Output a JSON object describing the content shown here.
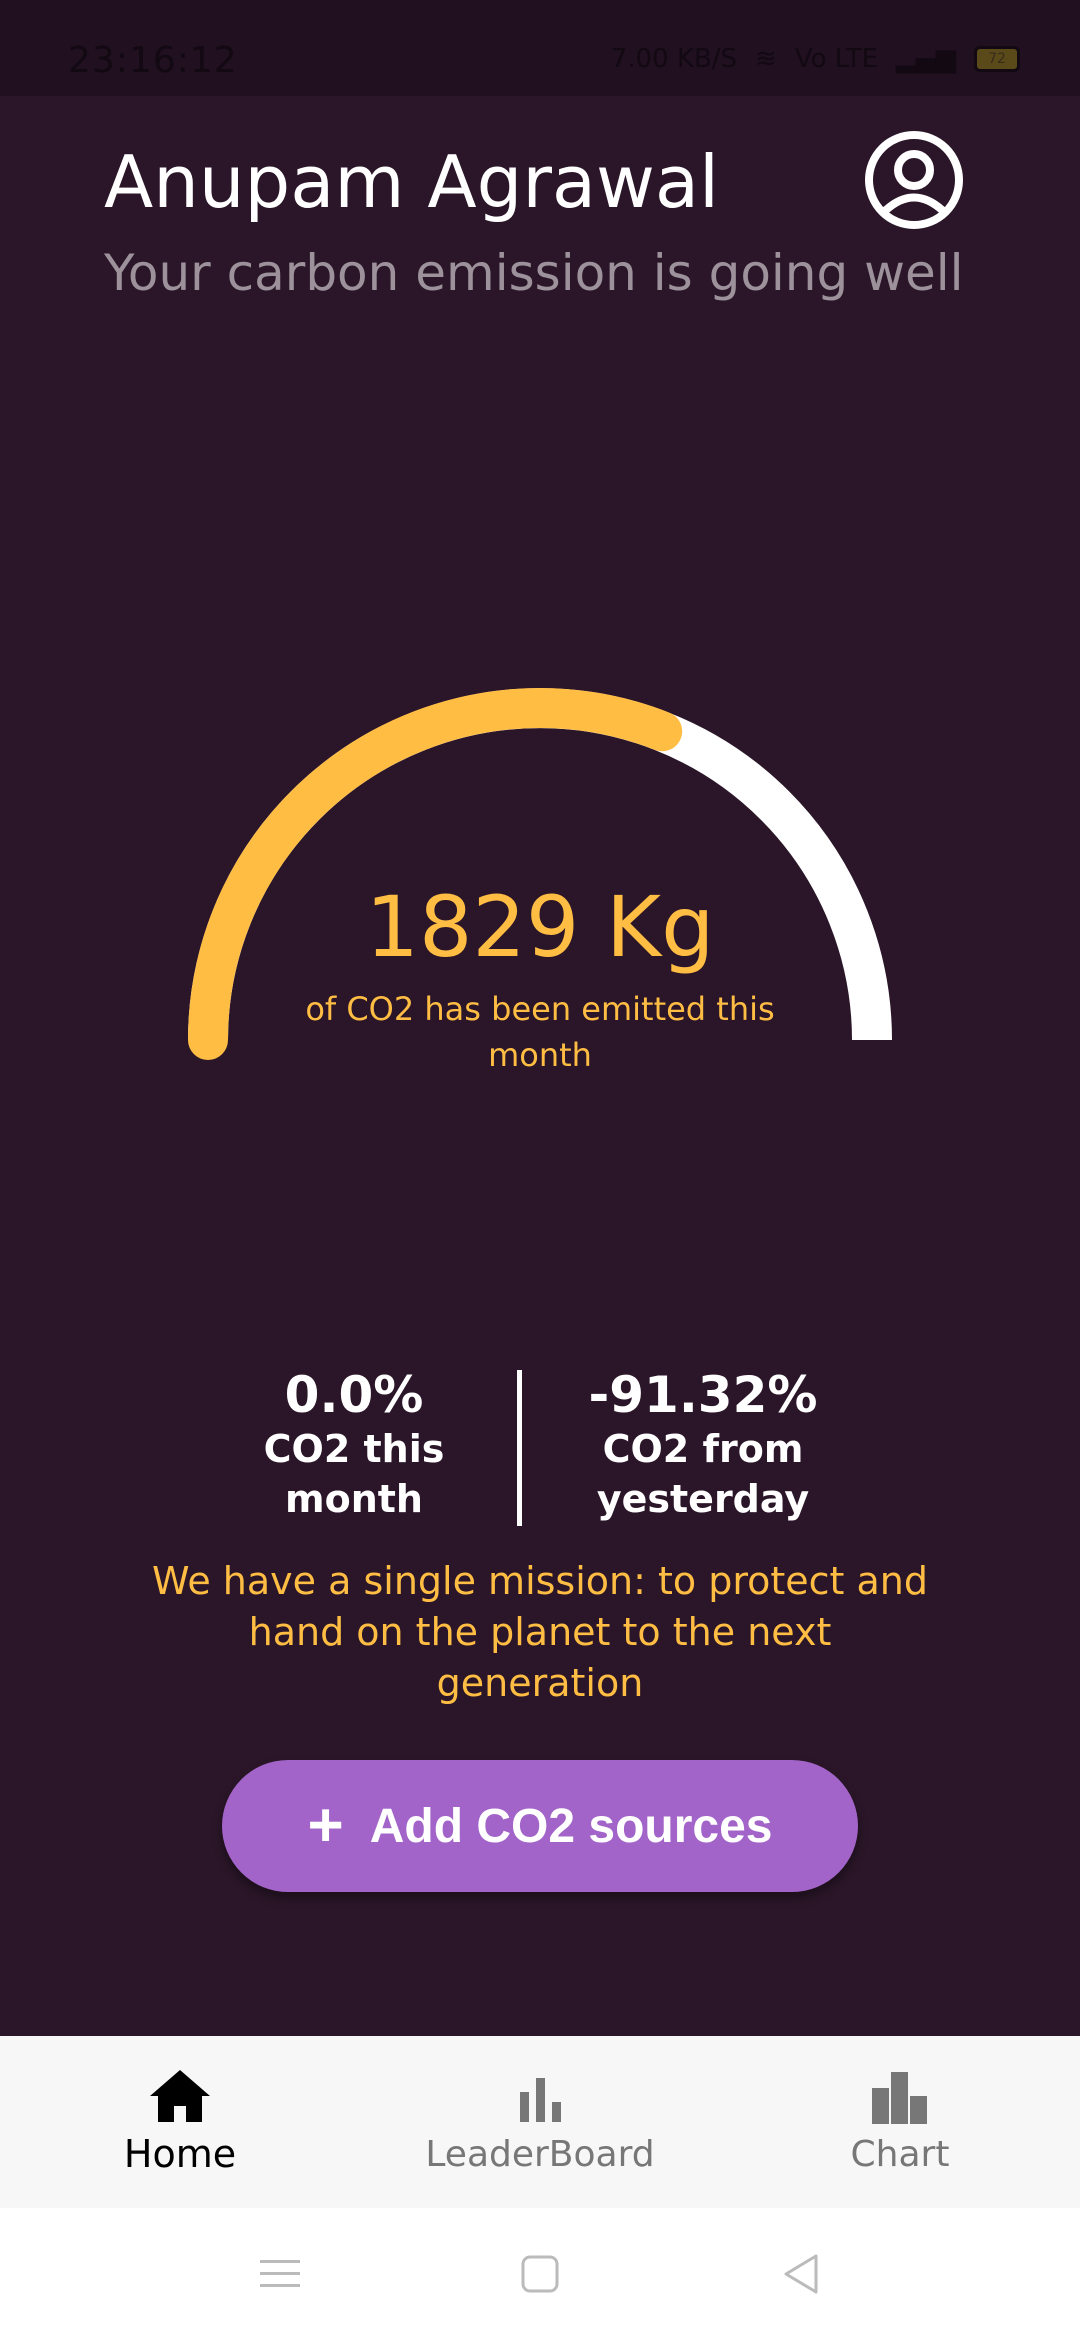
{
  "status_bar": {
    "time": "23:16:12",
    "speed": "7.00 KB/S",
    "network": "Vo LTE",
    "battery": "72"
  },
  "header": {
    "title": "Anupam Agrawal",
    "subtitle": "Your carbon emission is going well",
    "avatar_icon": "account-circle-icon"
  },
  "gauge": {
    "value": "1829 Kg",
    "caption": "of CO2 has been emitted this month",
    "fill_fraction": 0.62,
    "fill_color": "#ffbd44",
    "track_color": "#ffffff"
  },
  "stats": [
    {
      "value": "0.0%",
      "label": "CO2 this month"
    },
    {
      "value": "-91.32%",
      "label": "CO2 from yesterday"
    }
  ],
  "mission": "We have a single mission: to protect and hand on the planet to the next generation",
  "add_button": {
    "icon": "plus-icon",
    "label": "Add CO2 sources"
  },
  "bottom_nav": [
    {
      "label": "Home",
      "icon": "home-icon",
      "active": true
    },
    {
      "label": "LeaderBoard",
      "icon": "leaderboard-icon",
      "active": false
    },
    {
      "label": "Chart",
      "icon": "chart-icon",
      "active": false
    }
  ],
  "colors": {
    "background": "#2a1628",
    "accent": "#ffbd44",
    "button": "#a264c8"
  }
}
